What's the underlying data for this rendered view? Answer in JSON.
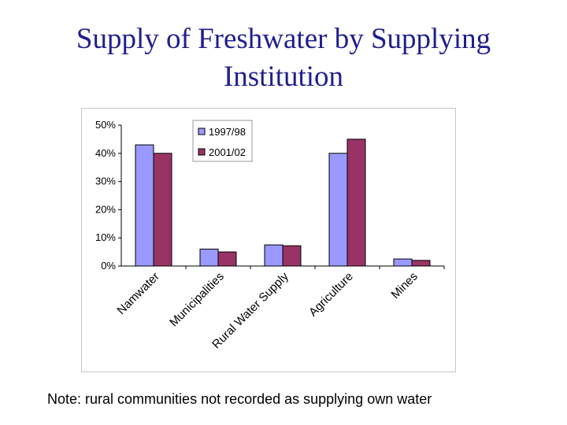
{
  "title": {
    "line1": "Supply of Freshwater by Supplying",
    "line2": "Institution"
  },
  "note": "Note: rural communities not recorded as supplying own water",
  "chart_data": {
    "type": "bar",
    "title": "Supply of Freshwater by Supplying Institution",
    "xlabel": "",
    "ylabel": "",
    "categories": [
      "Namwater",
      "Municipalities",
      "Rural Water Supply",
      "Agriculture",
      "Mines"
    ],
    "series": [
      {
        "name": "1997/98",
        "color": "#9999ff",
        "values": [
          43,
          6,
          7.5,
          40,
          2.5
        ]
      },
      {
        "name": "2001/02",
        "color": "#993366",
        "values": [
          40,
          5,
          7.2,
          45,
          2
        ]
      }
    ],
    "ylim": [
      0,
      50
    ],
    "yticks": [
      0,
      10,
      20,
      30,
      40,
      50
    ],
    "ytick_labels": [
      "0%",
      "10%",
      "20%",
      "30%",
      "40%",
      "50%"
    ],
    "grid": false,
    "legend_position": "top-center"
  }
}
